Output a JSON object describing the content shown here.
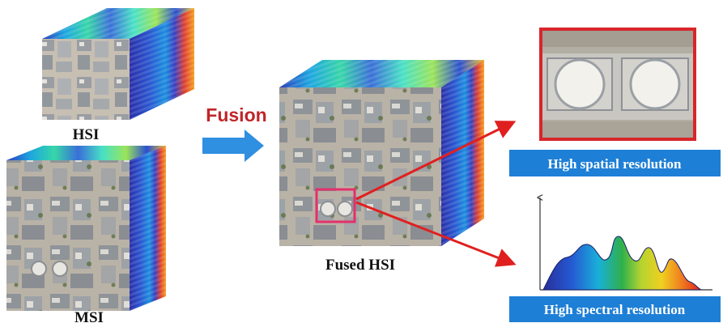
{
  "labels": {
    "hsi": "HSI",
    "msi": "MSI",
    "fusion": "Fusion",
    "fused_hsi": "Fused HSI",
    "spatial": "High spatial resolution",
    "spectral": "High spectral resolution"
  },
  "colors": {
    "fusion_text": "#c0252a",
    "fusion_arrow": "#2f8fe0",
    "banner": "#1e7fd6",
    "highlight_box": "#e3306c",
    "zoom_frame": "#d8262a",
    "output_arrow": "#e02020"
  },
  "icons": {
    "fusion_arrow": "right-arrow-icon",
    "spectral_plot": "spectrum-curve-icon"
  }
}
